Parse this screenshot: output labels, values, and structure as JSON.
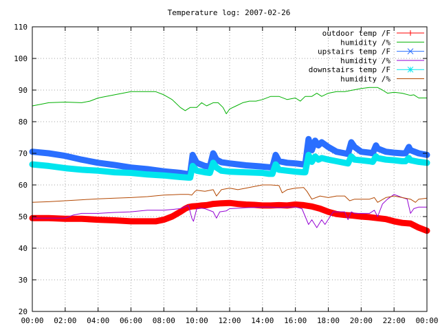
{
  "chart_data": {
    "type": "line",
    "title": "Temperature log: 2007-02-26",
    "xlabel": "",
    "ylabel": "",
    "xlim": [
      "00:00",
      "24:00"
    ],
    "ylim": [
      20,
      110
    ],
    "grid": true,
    "legend_position": "top-right",
    "x_tick_labels": [
      "00:00",
      "02:00",
      "04:00",
      "06:00",
      "08:00",
      "10:00",
      "12:00",
      "14:00",
      "16:00",
      "18:00",
      "20:00",
      "22:00",
      "00:00"
    ],
    "y_tick_labels": [
      "20",
      "30",
      "40",
      "50",
      "60",
      "70",
      "80",
      "90",
      "100",
      "110"
    ],
    "series": [
      {
        "name": "outdoor temp /F",
        "color": "#ff0000",
        "style": "thick-markers",
        "x": [
          0,
          1,
          2,
          3,
          4,
          5,
          6,
          7,
          7.5,
          8,
          8.5,
          9,
          9.3,
          9.5,
          9.7,
          10,
          10.3,
          10.6,
          11,
          11.5,
          12,
          12.5,
          13,
          13.5,
          14,
          14.5,
          15,
          15.5,
          16,
          16.5,
          17,
          17.5,
          18,
          18.5,
          19,
          19.5,
          20,
          20.5,
          21,
          21.5,
          22,
          22.5,
          23,
          23.5,
          24
        ],
        "values": [
          49.5,
          49.5,
          49.3,
          49.3,
          49,
          48.8,
          48.5,
          48.5,
          48.5,
          49,
          50,
          51.5,
          52.5,
          53,
          53.2,
          53.3,
          53.5,
          53.6,
          54,
          54.2,
          54.3,
          54,
          53.8,
          53.7,
          53.5,
          53.5,
          53.6,
          53.5,
          53.8,
          53.6,
          53.2,
          52.5,
          51.5,
          50.8,
          50.5,
          50.3,
          50,
          49.8,
          49.5,
          49.2,
          48.5,
          48,
          47.8,
          46.5,
          45.5
        ]
      },
      {
        "name": "humidity /%",
        "color": "#00b000",
        "style": "line",
        "x": [
          0,
          0.5,
          1,
          2,
          3,
          3.5,
          4,
          5,
          6,
          7,
          7.5,
          8,
          8.5,
          9,
          9.3,
          9.6,
          10,
          10.3,
          10.6,
          11,
          11.3,
          11.6,
          11.8,
          12,
          12.4,
          12.8,
          13.2,
          13.6,
          14,
          14.5,
          15,
          15.5,
          16,
          16.3,
          16.6,
          17,
          17.3,
          17.6,
          18,
          18.5,
          19,
          19.5,
          20,
          20.5,
          21,
          21.3,
          21.6,
          22,
          22.5,
          23,
          23.2,
          23.5,
          24
        ],
        "values": [
          85,
          85.5,
          86,
          86.2,
          86,
          86.5,
          87.5,
          88.5,
          89.5,
          89.5,
          89.5,
          88.5,
          87,
          84.5,
          83.5,
          84.5,
          84.5,
          86,
          85,
          86,
          86,
          84.5,
          82.5,
          84,
          85,
          86,
          86.5,
          86.5,
          87,
          88,
          88,
          87,
          87.5,
          86.5,
          88,
          88,
          89,
          88,
          89,
          89.5,
          89.5,
          90,
          90.5,
          90.8,
          90.8,
          90,
          89,
          89.3,
          89,
          88.3,
          88.5,
          87.5,
          87.5
        ]
      },
      {
        "name": "upstairs temp /F",
        "color": "#2a6fff",
        "style": "thick-markers",
        "x": [
          0,
          1,
          2,
          3,
          4,
          5,
          6,
          7,
          8,
          9,
          9.4,
          9.6,
          9.75,
          10,
          10.5,
          10.8,
          11,
          11.2,
          11.5,
          12,
          13,
          14,
          14.4,
          14.6,
          14.8,
          15,
          15.5,
          16,
          16.5,
          16.6,
          16.8,
          17,
          17.2,
          17.4,
          17.6,
          18,
          18.5,
          19,
          19.2,
          19.4,
          19.6,
          20,
          20.5,
          20.7,
          20.9,
          21,
          21.5,
          22,
          22.5,
          22.7,
          22.9,
          23,
          23.5,
          24
        ],
        "values": [
          70.5,
          70,
          69.2,
          68,
          67,
          66.3,
          65.5,
          65,
          64.3,
          63.8,
          63.5,
          63.5,
          69.5,
          67,
          66,
          65.8,
          70,
          68,
          67.2,
          66.8,
          66.2,
          65.8,
          65.6,
          65.6,
          69.5,
          67.5,
          67,
          66.8,
          66.5,
          66.5,
          74.5,
          71,
          74,
          72.5,
          73.5,
          72,
          70.5,
          70,
          69.8,
          73.5,
          72,
          70.5,
          70.2,
          70,
          72.5,
          71.5,
          70.5,
          70.2,
          70,
          70,
          72,
          71,
          70,
          69.5
        ]
      },
      {
        "name": "humidity /%",
        "color": "#9400d3",
        "style": "line",
        "x": [
          0,
          1,
          2,
          2.5,
          3,
          4,
          5,
          6,
          7,
          8,
          9,
          9.5,
          9.7,
          9.8,
          10,
          10.2,
          10.5,
          11,
          11.2,
          11.4,
          11.8,
          12,
          13,
          14,
          14.5,
          15,
          15.5,
          16,
          16.4,
          16.8,
          17,
          17.3,
          17.6,
          17.8,
          18.3,
          19,
          19.2,
          19.4,
          19.6,
          20,
          20.5,
          20.8,
          21,
          21.3,
          21.6,
          22,
          22.5,
          22.8,
          23,
          23.2,
          23.5,
          24
        ],
        "values": [
          49.5,
          49.5,
          49.5,
          50.5,
          51,
          51,
          51.3,
          51.5,
          52,
          52,
          52.5,
          53.5,
          49.5,
          48.5,
          52.5,
          52.7,
          52.5,
          51.5,
          49.5,
          51.5,
          51.8,
          52.5,
          52.8,
          53,
          53,
          52.8,
          53,
          53,
          52.5,
          47.5,
          49,
          46.5,
          49,
          47.5,
          51.5,
          51.5,
          49,
          51.5,
          51,
          51,
          51,
          52,
          50,
          54,
          55.5,
          57,
          56,
          55.5,
          51,
          52.5,
          53,
          53
        ]
      },
      {
        "name": "downstairs temp /F",
        "color": "#00e5ee",
        "style": "thick-markers",
        "x": [
          0,
          1,
          2,
          3,
          4,
          5,
          6,
          7,
          8,
          9,
          9.5,
          9.6,
          9.75,
          10,
          10.5,
          10.8,
          11,
          11.2,
          11.5,
          12,
          13,
          14,
          14.4,
          14.6,
          14.8,
          15,
          15.5,
          16,
          16.5,
          16.6,
          16.8,
          17,
          17.2,
          17.4,
          17.6,
          18,
          18.5,
          19,
          19.2,
          19.4,
          19.6,
          20,
          20.5,
          20.7,
          20.9,
          21,
          21.5,
          22,
          22.5,
          22.7,
          22.9,
          23,
          23.5,
          24
        ],
        "values": [
          66.5,
          66,
          65.3,
          64.8,
          64.5,
          64,
          63.8,
          63.3,
          63,
          62.5,
          62.3,
          62.3,
          66,
          64.5,
          64,
          63.8,
          67,
          65.5,
          64.5,
          64.2,
          64,
          63.8,
          63.5,
          63.5,
          66.5,
          64.8,
          64.5,
          64.2,
          64,
          64,
          69.5,
          67.3,
          69,
          68,
          68.5,
          68,
          67.5,
          67,
          66.8,
          69,
          68,
          67.8,
          67.5,
          67.3,
          69,
          68.5,
          68,
          67.8,
          67.5,
          67.5,
          68.5,
          67.8,
          67.3,
          67
        ]
      },
      {
        "name": "humidity /%",
        "color": "#b34700",
        "style": "line",
        "x": [
          0,
          1,
          2,
          3,
          4,
          5,
          6,
          7,
          8,
          9,
          9.5,
          9.7,
          9.9,
          10,
          10.5,
          11,
          11.2,
          11.5,
          12,
          12.5,
          13,
          13.5,
          14,
          14.5,
          15,
          15.2,
          15.5,
          16,
          16.5,
          16.7,
          17,
          17.5,
          18,
          18.5,
          19,
          19.3,
          19.6,
          20,
          20.5,
          20.8,
          21,
          21.5,
          22,
          22.5,
          23,
          23.3,
          23.5,
          24
        ],
        "values": [
          54.5,
          54.7,
          55,
          55.3,
          55.6,
          55.8,
          56,
          56.3,
          56.8,
          57,
          57,
          56.8,
          58,
          58.3,
          58,
          58.5,
          56.5,
          58.5,
          59,
          58.5,
          59,
          59.5,
          60,
          60,
          59.8,
          57.5,
          58.5,
          59,
          59.2,
          58,
          55.5,
          56.5,
          56,
          56.5,
          56.5,
          55,
          55.5,
          55.5,
          55.5,
          56,
          54.5,
          56,
          56.5,
          56,
          55.5,
          54.5,
          55.5,
          55.8
        ]
      }
    ]
  }
}
